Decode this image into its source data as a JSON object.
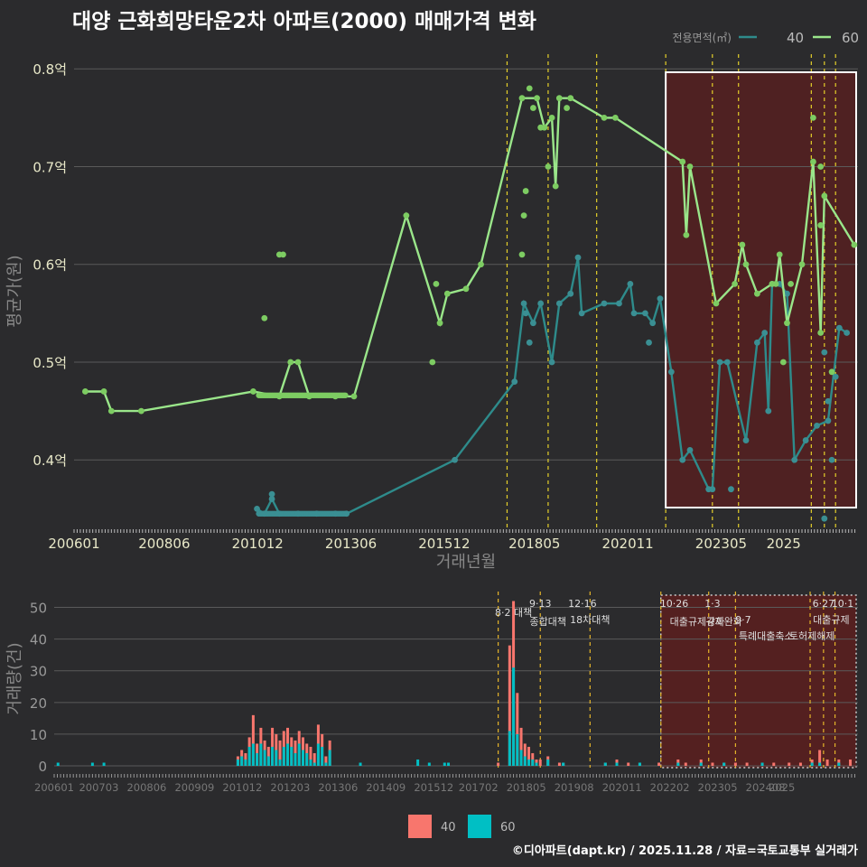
{
  "page": {
    "title": "대양 근화희망타운2차 아파트(2000) 매매가격 변화",
    "footer": "©디아파트(dapt.kr) / 2025.11.28 / 자료=국토교통부 실거래가"
  },
  "colors": {
    "s40_line": "#2e8b8b",
    "s40_pt": "#3a8f93",
    "s60_line": "#9ae68a",
    "s60_pt": "#7dcc62",
    "vol40": "#f8766d",
    "vol60": "#00bfc4",
    "policy": "#e5d02a",
    "policy2": "#e5b52a",
    "highlight": "#5c1f1f",
    "frame": "#ffffff"
  },
  "chart_data": [
    {
      "type": "line",
      "title": "대양 근화희망타운2차 아파트(2000) 매매가격 변화",
      "xlabel": "거래년월",
      "ylabel": "평균가(원)",
      "x_ticks": [
        "200601",
        "200806",
        "201012",
        "201306",
        "201512",
        "201805",
        "202011",
        "202305",
        "2025"
      ],
      "y_ticks": [
        "0.4억",
        "0.5억",
        "0.6억",
        "0.7억",
        "0.8억"
      ],
      "ylim": [
        0.33,
        0.815
      ],
      "legend_title": "전용면적(㎡)",
      "legend": [
        "40",
        "60"
      ],
      "series": [
        {
          "name": "40",
          "points": [
            [
              2010.9,
              0.35
            ],
            [
              2011.1,
              0.345
            ],
            [
              2011.3,
              0.36
            ],
            [
              2011.5,
              0.345
            ],
            [
              2012.0,
              0.345
            ],
            [
              2012.5,
              0.345
            ],
            [
              2013.0,
              0.345
            ],
            [
              2013.3,
              0.345
            ],
            [
              2016.2,
              0.4
            ],
            [
              2017.8,
              0.48
            ],
            [
              2018.05,
              0.56
            ],
            [
              2018.3,
              0.54
            ],
            [
              2018.5,
              0.56
            ],
            [
              2018.8,
              0.5
            ],
            [
              2019.0,
              0.56
            ],
            [
              2019.3,
              0.57
            ],
            [
              2019.5,
              0.607
            ],
            [
              2019.6,
              0.55
            ],
            [
              2020.2,
              0.56
            ],
            [
              2020.6,
              0.56
            ],
            [
              2020.9,
              0.58
            ],
            [
              2021.0,
              0.55
            ],
            [
              2021.3,
              0.55
            ],
            [
              2021.5,
              0.54
            ],
            [
              2021.7,
              0.565
            ],
            [
              2022.0,
              0.49
            ],
            [
              2022.3,
              0.4
            ],
            [
              2022.5,
              0.41
            ],
            [
              2023.0,
              0.37
            ],
            [
              2023.1,
              0.37
            ],
            [
              2023.3,
              0.5
            ],
            [
              2023.5,
              0.5
            ],
            [
              2024.0,
              0.42
            ],
            [
              2024.3,
              0.52
            ],
            [
              2024.5,
              0.53
            ],
            [
              2024.6,
              0.45
            ],
            [
              2024.7,
              0.58
            ],
            [
              2024.9,
              0.58
            ],
            [
              2025.1,
              0.57
            ],
            [
              2025.3,
              0.4
            ],
            [
              2025.6,
              0.42
            ],
            [
              2025.9,
              0.435
            ],
            [
              2026.2,
              0.44
            ],
            [
              2026.5,
              0.535
            ],
            [
              2026.7,
              0.53
            ]
          ]
        },
        {
          "name": "60",
          "points": [
            [
              2006.3,
              0.47
            ],
            [
              2006.8,
              0.47
            ],
            [
              2007.0,
              0.45
            ],
            [
              2007.8,
              0.45
            ],
            [
              2010.8,
              0.47
            ],
            [
              2011.5,
              0.465
            ],
            [
              2011.8,
              0.5
            ],
            [
              2012.0,
              0.5
            ],
            [
              2012.3,
              0.465
            ],
            [
              2013.0,
              0.465
            ],
            [
              2013.5,
              0.465
            ],
            [
              2014.9,
              0.65
            ],
            [
              2015.8,
              0.54
            ],
            [
              2016.0,
              0.57
            ],
            [
              2016.5,
              0.575
            ],
            [
              2016.9,
              0.6
            ],
            [
              2018.0,
              0.77
            ],
            [
              2018.4,
              0.77
            ],
            [
              2018.6,
              0.74
            ],
            [
              2018.8,
              0.75
            ],
            [
              2018.9,
              0.68
            ],
            [
              2019.0,
              0.77
            ],
            [
              2019.3,
              0.77
            ],
            [
              2020.2,
              0.75
            ],
            [
              2020.5,
              0.75
            ],
            [
              2022.3,
              0.705
            ],
            [
              2022.4,
              0.63
            ],
            [
              2022.5,
              0.7
            ],
            [
              2023.2,
              0.56
            ],
            [
              2023.7,
              0.58
            ],
            [
              2023.9,
              0.62
            ],
            [
              2024.0,
              0.6
            ],
            [
              2024.3,
              0.57
            ],
            [
              2024.7,
              0.58
            ],
            [
              2024.8,
              0.58
            ],
            [
              2024.9,
              0.61
            ],
            [
              2025.1,
              0.54
            ],
            [
              2025.5,
              0.6
            ],
            [
              2025.8,
              0.705
            ],
            [
              2026.0,
              0.53
            ],
            [
              2026.1,
              0.67
            ],
            [
              2026.9,
              0.62
            ]
          ]
        }
      ],
      "scatter_extra": [
        {
          "series": "40",
          "points": [
            [
              2011.3,
              0.365
            ],
            [
              2018.1,
              0.55
            ],
            [
              2018.2,
              0.52
            ],
            [
              2021.4,
              0.52
            ],
            [
              2023.6,
              0.37
            ],
            [
              2026.1,
              0.34
            ],
            [
              2026.2,
              0.46
            ],
            [
              2026.3,
              0.4
            ],
            [
              2026.4,
              0.485
            ],
            [
              2026.1,
              0.51
            ]
          ]
        },
        {
          "series": "60",
          "points": [
            [
              2011.1,
              0.545
            ],
            [
              2011.5,
              0.61
            ],
            [
              2011.6,
              0.61
            ],
            [
              2015.7,
              0.58
            ],
            [
              2015.6,
              0.5
            ],
            [
              2018.0,
              0.61
            ],
            [
              2018.05,
              0.65
            ],
            [
              2018.1,
              0.675
            ],
            [
              2018.2,
              0.78
            ],
            [
              2018.3,
              0.76
            ],
            [
              2018.5,
              0.74
            ],
            [
              2018.7,
              0.7
            ],
            [
              2019.2,
              0.76
            ],
            [
              2025.0,
              0.5
            ],
            [
              2025.8,
              0.75
            ],
            [
              2026.0,
              0.7
            ],
            [
              2026.0,
              0.64
            ],
            [
              2026.3,
              0.49
            ],
            [
              2025.2,
              0.58
            ]
          ]
        }
      ]
    },
    {
      "type": "bar",
      "xlabel": "",
      "ylabel": "거래량(건)",
      "x_ticks": [
        "200601",
        "200703",
        "200806",
        "200909",
        "201012",
        "201203",
        "201306",
        "201409",
        "201512",
        "201702",
        "201805",
        "201908",
        "202011",
        "202202",
        "202305",
        "202408",
        "2025"
      ],
      "y_ticks": [
        "0",
        "10",
        "20",
        "30",
        "40",
        "50"
      ],
      "ylim": [
        0,
        55
      ],
      "legend": [
        "40",
        "60"
      ],
      "series": [
        {
          "name": "40",
          "points": [
            [
              2010.8,
              3
            ],
            [
              2010.9,
              5
            ],
            [
              2011.0,
              4
            ],
            [
              2011.1,
              9
            ],
            [
              2011.2,
              16
            ],
            [
              2011.3,
              7
            ],
            [
              2011.4,
              12
            ],
            [
              2011.5,
              8
            ],
            [
              2011.6,
              6
            ],
            [
              2011.7,
              12
            ],
            [
              2011.8,
              10
            ],
            [
              2011.9,
              8
            ],
            [
              2012.0,
              11
            ],
            [
              2012.1,
              12
            ],
            [
              2012.2,
              9
            ],
            [
              2012.3,
              8
            ],
            [
              2012.4,
              11
            ],
            [
              2012.5,
              9
            ],
            [
              2012.6,
              7
            ],
            [
              2012.7,
              6
            ],
            [
              2012.8,
              4
            ],
            [
              2012.9,
              13
            ],
            [
              2013.0,
              10
            ],
            [
              2013.1,
              3
            ],
            [
              2013.2,
              8
            ],
            [
              2017.6,
              1
            ],
            [
              2017.9,
              38
            ],
            [
              2018.0,
              52
            ],
            [
              2018.1,
              23
            ],
            [
              2018.2,
              12
            ],
            [
              2018.3,
              7
            ],
            [
              2018.4,
              6
            ],
            [
              2018.5,
              4
            ],
            [
              2018.6,
              2
            ],
            [
              2018.7,
              2
            ],
            [
              2018.9,
              3
            ],
            [
              2019.2,
              1
            ],
            [
              2019.3,
              1
            ],
            [
              2020.4,
              1
            ],
            [
              2020.7,
              2
            ],
            [
              2021.0,
              1
            ],
            [
              2021.3,
              1
            ],
            [
              2021.8,
              1
            ],
            [
              2022.3,
              2
            ],
            [
              2022.5,
              1
            ],
            [
              2022.9,
              2
            ],
            [
              2023.2,
              1
            ],
            [
              2023.5,
              1
            ],
            [
              2023.8,
              1
            ],
            [
              2024.1,
              1
            ],
            [
              2024.5,
              1
            ],
            [
              2024.8,
              1
            ],
            [
              2025.2,
              1
            ],
            [
              2025.5,
              1
            ],
            [
              2025.8,
              2
            ],
            [
              2026.0,
              5
            ],
            [
              2026.2,
              2
            ],
            [
              2026.5,
              2
            ],
            [
              2026.8,
              2
            ]
          ]
        },
        {
          "name": "60",
          "points": [
            [
              2006.1,
              1
            ],
            [
              2007.0,
              1
            ],
            [
              2007.3,
              1
            ],
            [
              2010.8,
              2
            ],
            [
              2010.9,
              3
            ],
            [
              2011.0,
              2
            ],
            [
              2011.1,
              6
            ],
            [
              2011.2,
              7
            ],
            [
              2011.3,
              4
            ],
            [
              2011.4,
              7
            ],
            [
              2011.5,
              5
            ],
            [
              2011.6,
              3
            ],
            [
              2011.7,
              6
            ],
            [
              2011.8,
              5
            ],
            [
              2011.9,
              2
            ],
            [
              2012.0,
              6
            ],
            [
              2012.1,
              7
            ],
            [
              2012.2,
              6
            ],
            [
              2012.3,
              4
            ],
            [
              2012.4,
              7
            ],
            [
              2012.5,
              5
            ],
            [
              2012.6,
              4
            ],
            [
              2012.7,
              2
            ],
            [
              2012.8,
              1
            ],
            [
              2012.9,
              7
            ],
            [
              2013.0,
              6
            ],
            [
              2013.1,
              1
            ],
            [
              2013.2,
              5
            ],
            [
              2014.0,
              1
            ],
            [
              2015.5,
              2
            ],
            [
              2015.8,
              1
            ],
            [
              2016.2,
              1
            ],
            [
              2016.3,
              1
            ],
            [
              2017.9,
              11
            ],
            [
              2018.0,
              31
            ],
            [
              2018.1,
              10
            ],
            [
              2018.2,
              5
            ],
            [
              2018.3,
              3
            ],
            [
              2018.4,
              2
            ],
            [
              2018.5,
              2
            ],
            [
              2018.6,
              1
            ],
            [
              2018.9,
              2
            ],
            [
              2019.3,
              1
            ],
            [
              2020.4,
              1
            ],
            [
              2020.7,
              1
            ],
            [
              2021.3,
              1
            ],
            [
              2022.3,
              1
            ],
            [
              2022.9,
              1
            ],
            [
              2023.5,
              1
            ],
            [
              2024.5,
              1
            ],
            [
              2025.8,
              1
            ],
            [
              2026.0,
              1
            ],
            [
              2026.5,
              1
            ]
          ]
        }
      ],
      "annotations": [
        "8·2 대책",
        "9·13",
        "종합대책",
        "12·16",
        "18차대책",
        "10·26",
        "대출규제강화",
        "1·3",
        "규제완화",
        "9·7",
        "특례대출축소",
        "토허제해제",
        "6·27",
        "대출규제",
        "10·1"
      ]
    }
  ]
}
